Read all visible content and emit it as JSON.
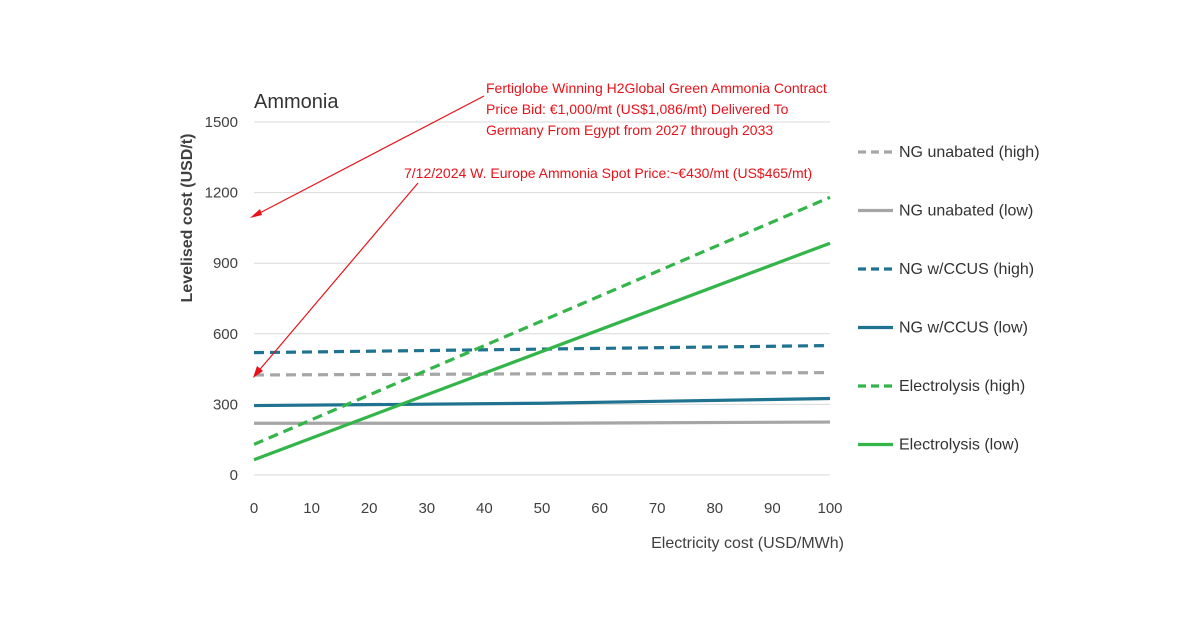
{
  "chart_data": {
    "type": "line",
    "title": "Ammonia",
    "xlabel": "Electricity cost (USD/MWh)",
    "ylabel": "Levelised cost (USD/t)",
    "xlim": [
      0,
      100
    ],
    "ylim": [
      0,
      1500
    ],
    "x_ticks": [
      0,
      10,
      20,
      30,
      40,
      50,
      60,
      70,
      80,
      90,
      100
    ],
    "y_ticks": [
      0,
      300,
      600,
      900,
      1200,
      1500
    ],
    "grid": true,
    "legend_position": "right",
    "series": [
      {
        "name": "NG unabated (high)",
        "color": "#a6a6a6",
        "dash": true,
        "x": [
          0,
          50,
          100
        ],
        "values": [
          425,
          430,
          435
        ]
      },
      {
        "name": "NG unabated (low)",
        "color": "#a6a6a6",
        "dash": false,
        "x": [
          0,
          50,
          100
        ],
        "values": [
          220,
          220,
          225
        ]
      },
      {
        "name": "NG w/CCUS (high)",
        "color": "#1f7391",
        "dash": true,
        "x": [
          0,
          50,
          100
        ],
        "values": [
          520,
          535,
          550
        ]
      },
      {
        "name": "NG w/CCUS (low)",
        "color": "#1f7391",
        "dash": false,
        "x": [
          0,
          50,
          100
        ],
        "values": [
          295,
          305,
          325
        ]
      },
      {
        "name": "Electrolysis (high)",
        "color": "#33b54a",
        "dash": true,
        "x": [
          0,
          100
        ],
        "values": [
          130,
          1180
        ]
      },
      {
        "name": "Electrolysis (low)",
        "color": "#33b54a",
        "dash": false,
        "x": [
          0,
          100
        ],
        "values": [
          65,
          985
        ]
      }
    ],
    "annotations": [
      {
        "lines": [
          "Fertiglobe Winning H2Global Green Ammonia Contract",
          "Price Bid: €1,000/mt (US$1,086/mt) Delivered To",
          "Germany From Egypt from 2027 through 2033"
        ],
        "color": "#e8121a"
      },
      {
        "lines": [
          "7/12/2024 W. Europe Ammonia Spot Price:~€430/mt (US$465/mt)"
        ],
        "color": "#e8121a"
      }
    ]
  }
}
